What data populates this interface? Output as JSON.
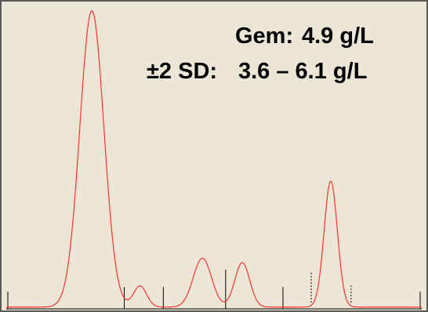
{
  "chart_data": {
    "type": "line",
    "title": "",
    "xlabel": "",
    "ylabel": "",
    "annotations": [
      {
        "label": "Gem:",
        "value": "4.9 g/L"
      },
      {
        "label": "±2 SD:",
        "value": "3.6 – 6.1 g/L"
      }
    ],
    "grid": false,
    "legend": "none",
    "xlim": [
      0,
      100
    ],
    "ylim": [
      0,
      100
    ],
    "series": [
      {
        "color": "#ff3030",
        "peaks": [
          {
            "center": 20.6,
            "height": 100,
            "width": 2.9
          },
          {
            "center": 32.2,
            "height": 7.1,
            "width": 1.6
          },
          {
            "center": 47.2,
            "height": 16.5,
            "width": 2.2
          },
          {
            "center": 56.8,
            "height": 15.0,
            "width": 1.8
          },
          {
            "center": 78.1,
            "height": 42.5,
            "width": 1.6
          }
        ]
      }
    ],
    "segment_boundaries_solid": [
      28.4,
      37.8,
      52.8,
      66.6
    ],
    "segment_boundaries_dashed": [
      73.4,
      83.0
    ]
  },
  "colors": {
    "background": "#ede6d6",
    "border": "#5a5a5a",
    "curve": "#ff3030",
    "marker": "#000000",
    "text": "#000000"
  }
}
